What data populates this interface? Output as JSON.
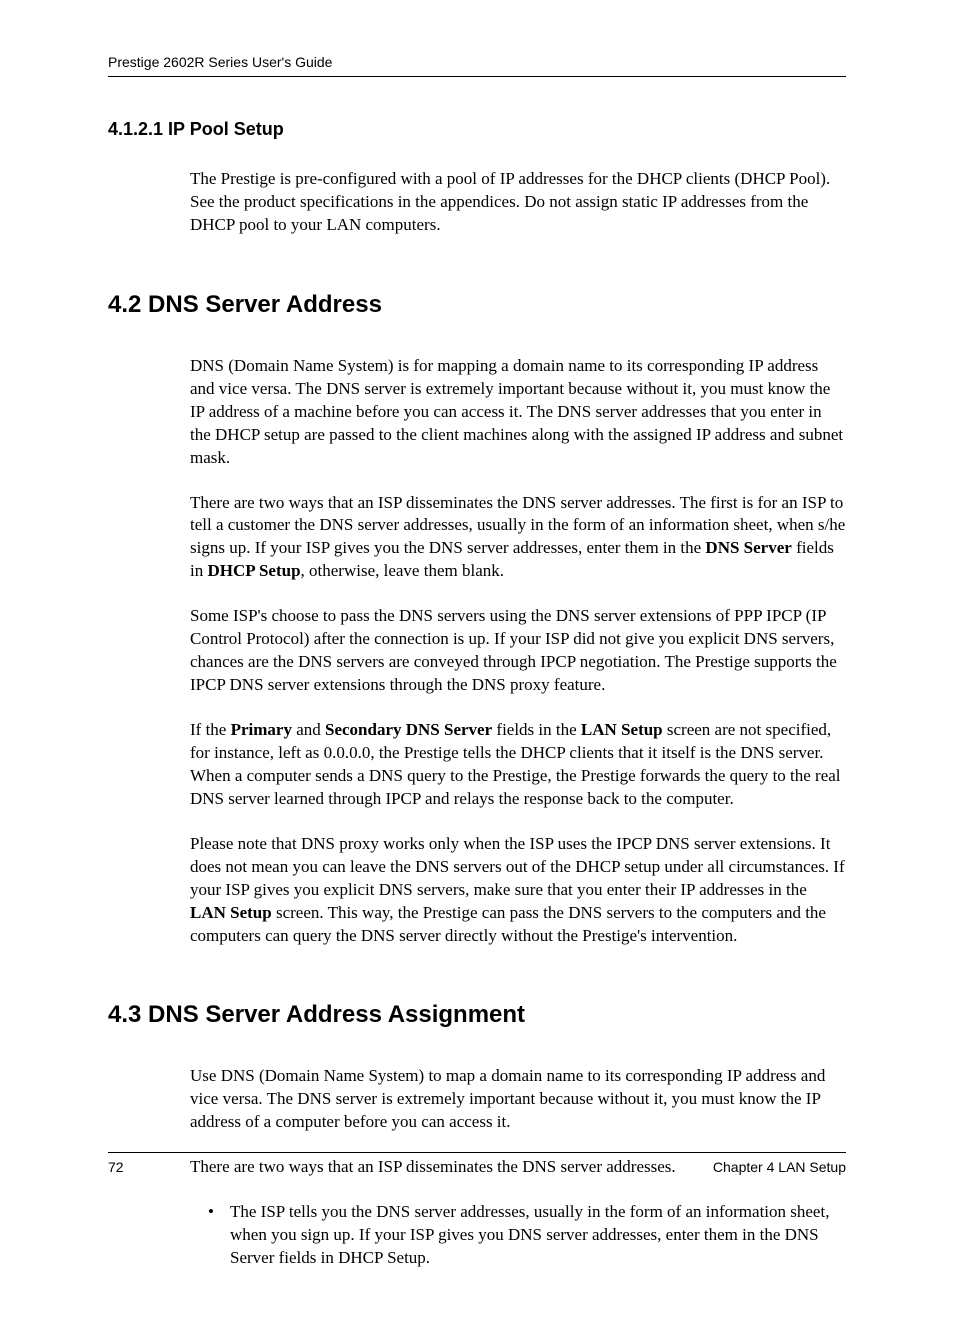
{
  "header": {
    "title": "Prestige 2602R Series User's Guide"
  },
  "section_4_1_2_1": {
    "heading": "4.1.2.1  IP Pool Setup",
    "para1": "The Prestige is pre-configured with a pool of IP addresses for the DHCP clients (DHCP Pool). See the product specifications in the appendices. Do not assign static IP addresses from the DHCP pool to your LAN computers."
  },
  "section_4_2": {
    "heading": "4.2  DNS Server Address",
    "para1": "DNS (Domain Name System) is for mapping a domain name to its corresponding IP address and vice versa. The DNS server is extremely important because without it, you must know the IP address of a machine before you can access it.  The DNS server addresses that you enter in the DHCP setup are passed to the client machines along with the assigned IP address and subnet mask.",
    "para2_a": "There are two ways that an ISP disseminates the DNS server addresses.  The first is for an ISP to tell a customer the DNS server addresses, usually in the form of an information sheet, when s/he signs up.  If your ISP gives you the DNS server addresses, enter them in the ",
    "para2_bold1": "DNS Server",
    "para2_b": " fields in ",
    "para2_bold2": "DHCP Setup",
    "para2_c": ", otherwise, leave them blank.",
    "para3": "Some ISP's choose to pass the DNS servers using the DNS server extensions of PPP IPCP (IP Control Protocol) after the connection is up.  If your ISP did not give you explicit DNS servers, chances are the DNS servers are conveyed through IPCP negotiation.  The Prestige supports the IPCP DNS server extensions through the DNS proxy feature.",
    "para4_a": "If the ",
    "para4_bold1": "Primary",
    "para4_b": " and ",
    "para4_bold2": "Secondary DNS Server",
    "para4_c": " fields in the ",
    "para4_bold3": "LAN Setup",
    "para4_d": " screen are not specified, for instance, left as 0.0.0.0, the Prestige tells the DHCP clients that it itself is the DNS server.  When a computer sends a DNS query to the Prestige, the Prestige forwards the query to the real DNS server learned through IPCP and relays the response back to the computer.",
    "para5_a": "Please note that DNS proxy works only when the ISP uses the IPCP DNS server extensions.  It does not mean you can leave the DNS servers out of the DHCP setup under all circumstances.  If your ISP gives you explicit DNS servers, make sure that you enter their IP addresses in the ",
    "para5_bold1": "LAN Setup",
    "para5_b": " screen.  This way, the Prestige can pass the DNS servers to the computers and the computers can query the DNS server directly without the Prestige's intervention."
  },
  "section_4_3": {
    "heading": "4.3  DNS Server Address Assignment",
    "para1": "Use DNS (Domain Name System) to map a domain name to its corresponding IP address and vice versa. The DNS server is extremely important because without it, you must know the IP address of a computer before you can access it.",
    "para2": "There are two ways that an ISP disseminates the DNS server addresses.",
    "bullet1": "The ISP tells you the DNS server addresses, usually in the form of an information sheet, when you sign up. If your ISP gives you DNS server addresses, enter them in the DNS Server fields in DHCP Setup."
  },
  "footer": {
    "page_number": "72",
    "chapter": "Chapter 4 LAN Setup"
  }
}
